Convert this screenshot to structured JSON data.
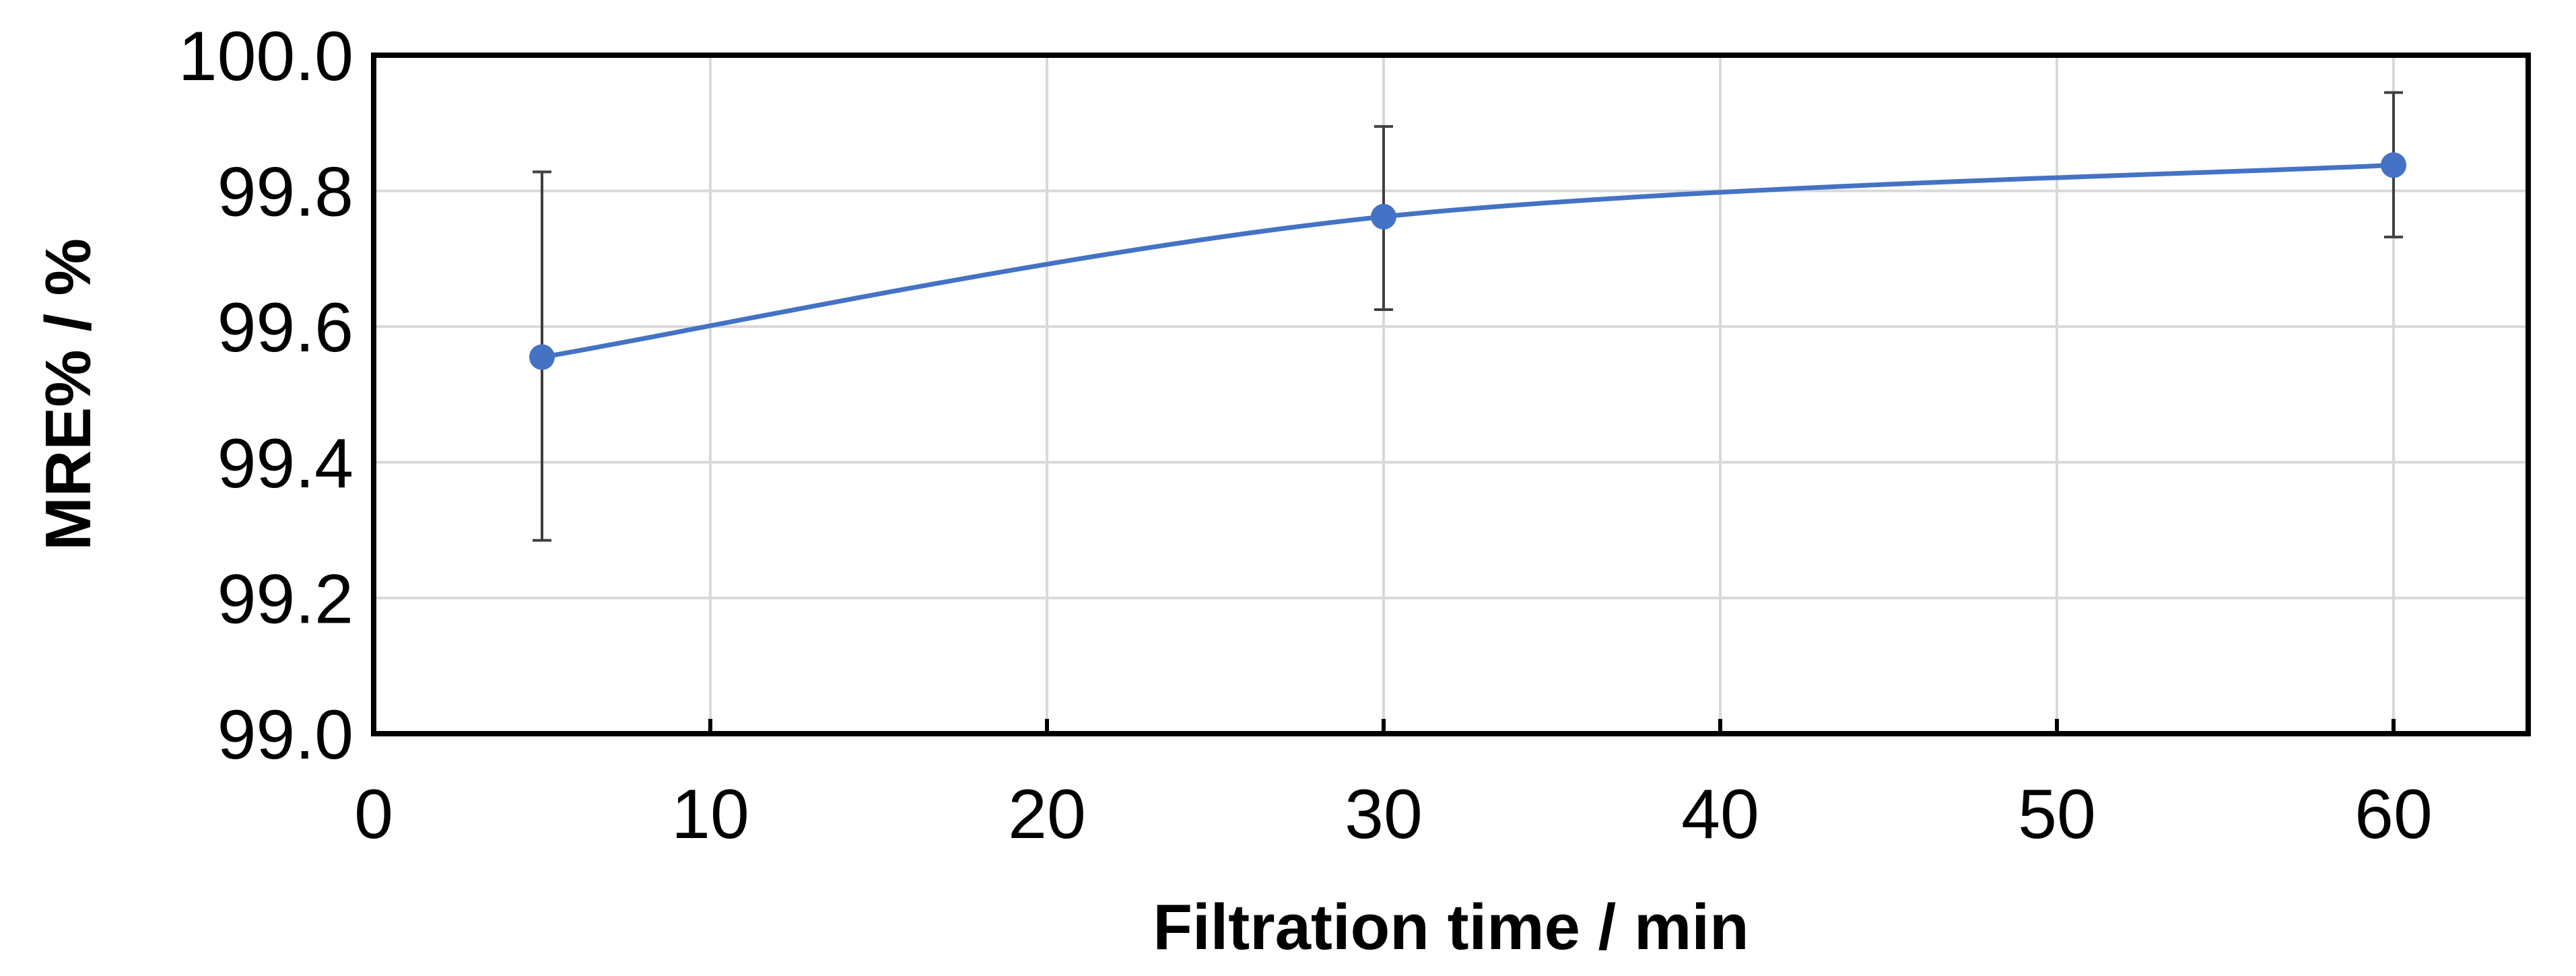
{
  "chart_data": {
    "type": "line",
    "title": "",
    "xlabel": "Filtration  time / min",
    "ylabel": "MRE%  / %",
    "xlim": [
      0,
      64
    ],
    "ylim": [
      99.0,
      100.0
    ],
    "x_ticks": [
      "0",
      "10",
      "20",
      "30",
      "40",
      "50",
      "60"
    ],
    "y_ticks": [
      "99.0",
      "99.2",
      "99.4",
      "99.6",
      "99.8",
      "100.0"
    ],
    "grid": true,
    "legend": "none",
    "series": [
      {
        "color": "#4472C4",
        "smooth": true,
        "points": [
          {
            "x": 5,
            "y": 99.555,
            "err_low": 99.285,
            "err_high": 99.828
          },
          {
            "x": 30,
            "y": 99.762,
            "err_low": 99.625,
            "err_high": 99.895
          },
          {
            "x": 60,
            "y": 99.838,
            "err_low": 99.732,
            "err_high": 99.945
          }
        ]
      }
    ]
  }
}
